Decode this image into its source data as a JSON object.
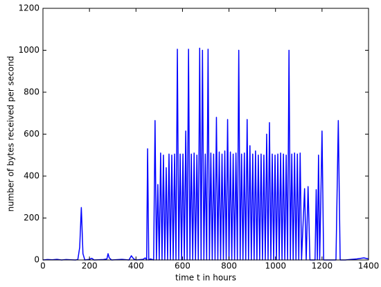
{
  "chart_data": {
    "type": "line",
    "xlabel": "time t in hours",
    "ylabel": "number of bytes received per second",
    "xlim": [
      0,
      1400
    ],
    "xticks": [
      0,
      200,
      400,
      600,
      800,
      1000,
      1200,
      1400
    ],
    "ylim": [
      0,
      1200
    ],
    "yticks": [
      0,
      200,
      400,
      600,
      800,
      1000,
      1200
    ],
    "x": [
      0,
      20,
      40,
      60,
      80,
      100,
      120,
      140,
      150,
      158,
      165,
      172,
      180,
      200,
      210,
      220,
      260,
      275,
      280,
      285,
      295,
      340,
      370,
      380,
      390,
      400,
      430,
      440,
      446,
      450,
      455,
      462,
      470,
      476,
      482,
      488,
      494,
      500,
      506,
      512,
      518,
      524,
      530,
      536,
      542,
      548,
      554,
      560,
      566,
      572,
      578,
      584,
      590,
      596,
      602,
      608,
      614,
      620,
      626,
      632,
      638,
      644,
      650,
      656,
      662,
      668,
      674,
      680,
      686,
      692,
      698,
      704,
      710,
      716,
      722,
      728,
      734,
      740,
      746,
      752,
      758,
      764,
      770,
      776,
      782,
      788,
      794,
      800,
      806,
      812,
      818,
      824,
      830,
      836,
      842,
      848,
      854,
      860,
      866,
      872,
      878,
      884,
      890,
      896,
      902,
      908,
      914,
      920,
      926,
      932,
      938,
      944,
      950,
      956,
      962,
      968,
      974,
      980,
      986,
      992,
      998,
      1004,
      1010,
      1016,
      1022,
      1028,
      1034,
      1040,
      1046,
      1052,
      1058,
      1064,
      1070,
      1076,
      1082,
      1088,
      1094,
      1100,
      1106,
      1112,
      1125,
      1132,
      1140,
      1148,
      1170,
      1175,
      1180,
      1185,
      1190,
      1195,
      1200,
      1207,
      1260,
      1270,
      1278,
      1300,
      1350,
      1380,
      1400
    ],
    "series": [
      {
        "name": "bytes",
        "color": "#0000ff",
        "values": [
          0,
          2,
          1,
          3,
          0,
          2,
          1,
          0,
          2,
          60,
          250,
          30,
          0,
          3,
          8,
          0,
          2,
          5,
          30,
          10,
          0,
          3,
          0,
          20,
          5,
          0,
          3,
          10,
          0,
          530,
          0,
          5,
          2,
          0,
          665,
          0,
          360,
          0,
          510,
          0,
          500,
          0,
          440,
          0,
          505,
          0,
          500,
          0,
          505,
          0,
          1005,
          0,
          505,
          0,
          505,
          0,
          615,
          0,
          1005,
          0,
          505,
          0,
          510,
          0,
          500,
          0,
          1010,
          0,
          1000,
          0,
          505,
          0,
          1005,
          0,
          510,
          0,
          505,
          0,
          680,
          0,
          515,
          0,
          505,
          0,
          520,
          0,
          670,
          0,
          515,
          0,
          505,
          0,
          510,
          0,
          1000,
          0,
          505,
          0,
          510,
          0,
          670,
          0,
          545,
          0,
          505,
          0,
          520,
          0,
          500,
          0,
          505,
          0,
          500,
          0,
          600,
          0,
          655,
          0,
          505,
          0,
          500,
          0,
          505,
          0,
          510,
          0,
          505,
          0,
          500,
          0,
          1000,
          0,
          505,
          0,
          510,
          0,
          505,
          0,
          510,
          0,
          340,
          0,
          350,
          0,
          0,
          335,
          0,
          500,
          0,
          300,
          615,
          0,
          0,
          665,
          0,
          0,
          5,
          10,
          5
        ]
      }
    ]
  }
}
